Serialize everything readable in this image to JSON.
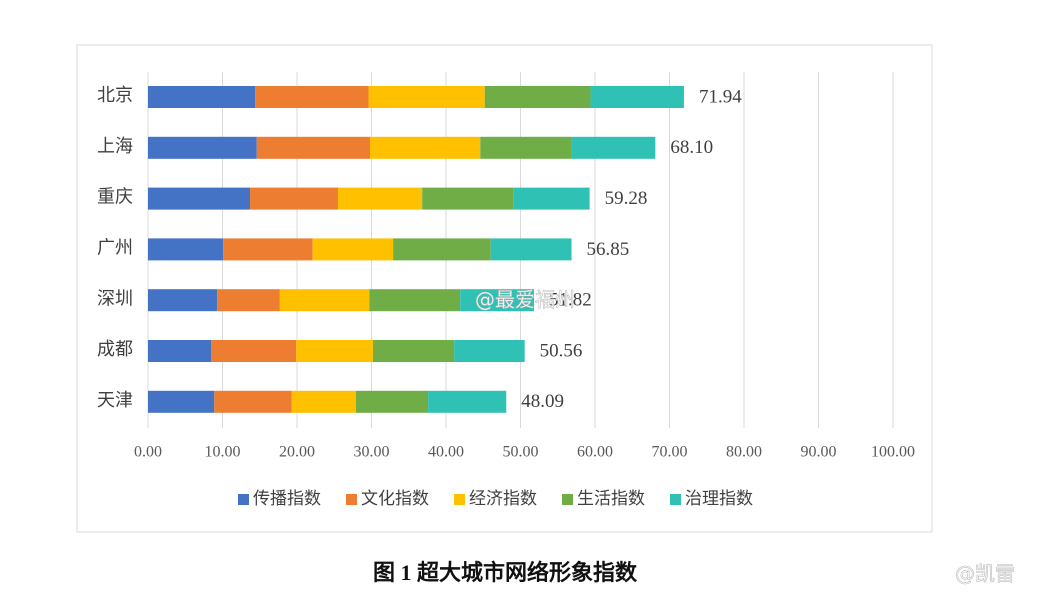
{
  "chart_data": {
    "type": "stacked-bar-horizontal",
    "title": "图 1  超大城市网络形象指数",
    "categories": [
      "北京",
      "上海",
      "重庆",
      "广州",
      "深圳",
      "成都",
      "天津"
    ],
    "series": [
      {
        "name": "传播指数",
        "color": "#4472c4",
        "values": [
          14.4,
          14.6,
          13.7,
          10.1,
          9.3,
          8.5,
          8.9
        ]
      },
      {
        "name": "文化指数",
        "color": "#ed7d31",
        "values": [
          15.2,
          15.2,
          11.8,
          12.0,
          8.4,
          11.4,
          10.4
        ]
      },
      {
        "name": "经济指数",
        "color": "#ffc000",
        "values": [
          15.6,
          14.8,
          11.3,
          10.8,
          12.0,
          10.3,
          8.6
        ]
      },
      {
        "name": "生活指数",
        "color": "#70ad47",
        "values": [
          14.2,
          12.3,
          12.3,
          13.1,
          12.2,
          10.9,
          9.7
        ]
      },
      {
        "name": "治理指数",
        "color": "#2fc1b3",
        "values": [
          12.54,
          11.2,
          10.18,
          10.85,
          9.92,
          9.46,
          10.49
        ]
      }
    ],
    "totals": [
      71.94,
      68.1,
      59.28,
      56.85,
      51.82,
      50.56,
      48.09
    ],
    "total_labels": [
      "71.94",
      "68.10",
      "59.28",
      "56.85",
      "51.82",
      "50.56",
      "48.09"
    ],
    "xlim": [
      0,
      100
    ],
    "xticks": [
      {
        "value": 0,
        "label": "0.00"
      },
      {
        "value": 10,
        "label": "10.00"
      },
      {
        "value": 20,
        "label": "20.00"
      },
      {
        "value": 30,
        "label": "30.00"
      },
      {
        "value": 40,
        "label": "40.00"
      },
      {
        "value": 50,
        "label": "50.00"
      },
      {
        "value": 60,
        "label": "60.00"
      },
      {
        "value": 70,
        "label": "70.00"
      },
      {
        "value": 80,
        "label": "80.00"
      },
      {
        "value": 90,
        "label": "90.00"
      },
      {
        "value": 100,
        "label": "100.00"
      }
    ],
    "grid": true,
    "legend": "bottom",
    "watermarks": [
      "@最爱福州",
      "@凯雷"
    ]
  }
}
